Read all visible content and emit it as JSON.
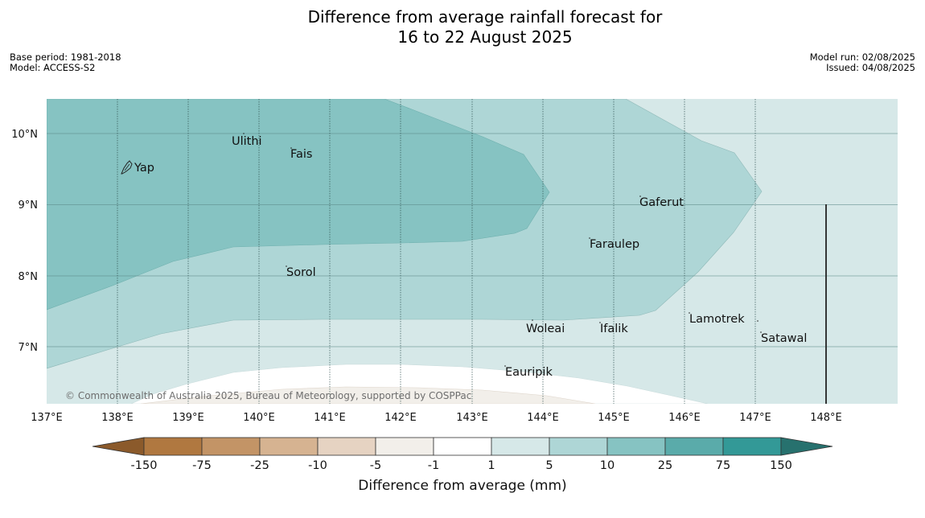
{
  "header": {
    "title_line1": "Difference from average rainfall forecast for",
    "title_line2": "16 to 22 August 2025",
    "base_period": "Base period: 1981-2018",
    "model": "Model: ACCESS-S2",
    "model_run": "Model run: 02/08/2025",
    "issued": "Issued: 04/08/2025"
  },
  "map": {
    "lon_labels": [
      "137°E",
      "138°E",
      "139°E",
      "140°E",
      "141°E",
      "142°E",
      "143°E",
      "144°E",
      "145°E",
      "146°E",
      "147°E",
      "148°E"
    ],
    "lat_labels": [
      "10°N",
      "9°N",
      "8°N",
      "7°N"
    ],
    "places": [
      {
        "name": "Yap"
      },
      {
        "name": "Ulithi"
      },
      {
        "name": "Fais"
      },
      {
        "name": "Gaferut"
      },
      {
        "name": "Faraulep"
      },
      {
        "name": "Sorol"
      },
      {
        "name": "Lamotrek"
      },
      {
        "name": "Woleai"
      },
      {
        "name": "Ifalik"
      },
      {
        "name": "Satawal"
      },
      {
        "name": "Eauripik"
      }
    ],
    "copyright": "© Commonwealth of Australia 2025, Bureau of Meteorology, supported by COSPPac"
  },
  "legend": {
    "title": "Difference from average (mm)",
    "ticks": [
      "-150",
      "-75",
      "-25",
      "-10",
      "-5",
      "-1",
      "1",
      "5",
      "10",
      "25",
      "75",
      "150"
    ],
    "colors": [
      "#8b5a2b",
      "#b07840",
      "#c39466",
      "#d6b391",
      "#e6d3c2",
      "#f2efea",
      "#ffffff",
      "#d6e8e8",
      "#aed6d6",
      "#86c3c2",
      "#5aabaa",
      "#339997",
      "#27716e"
    ]
  }
}
